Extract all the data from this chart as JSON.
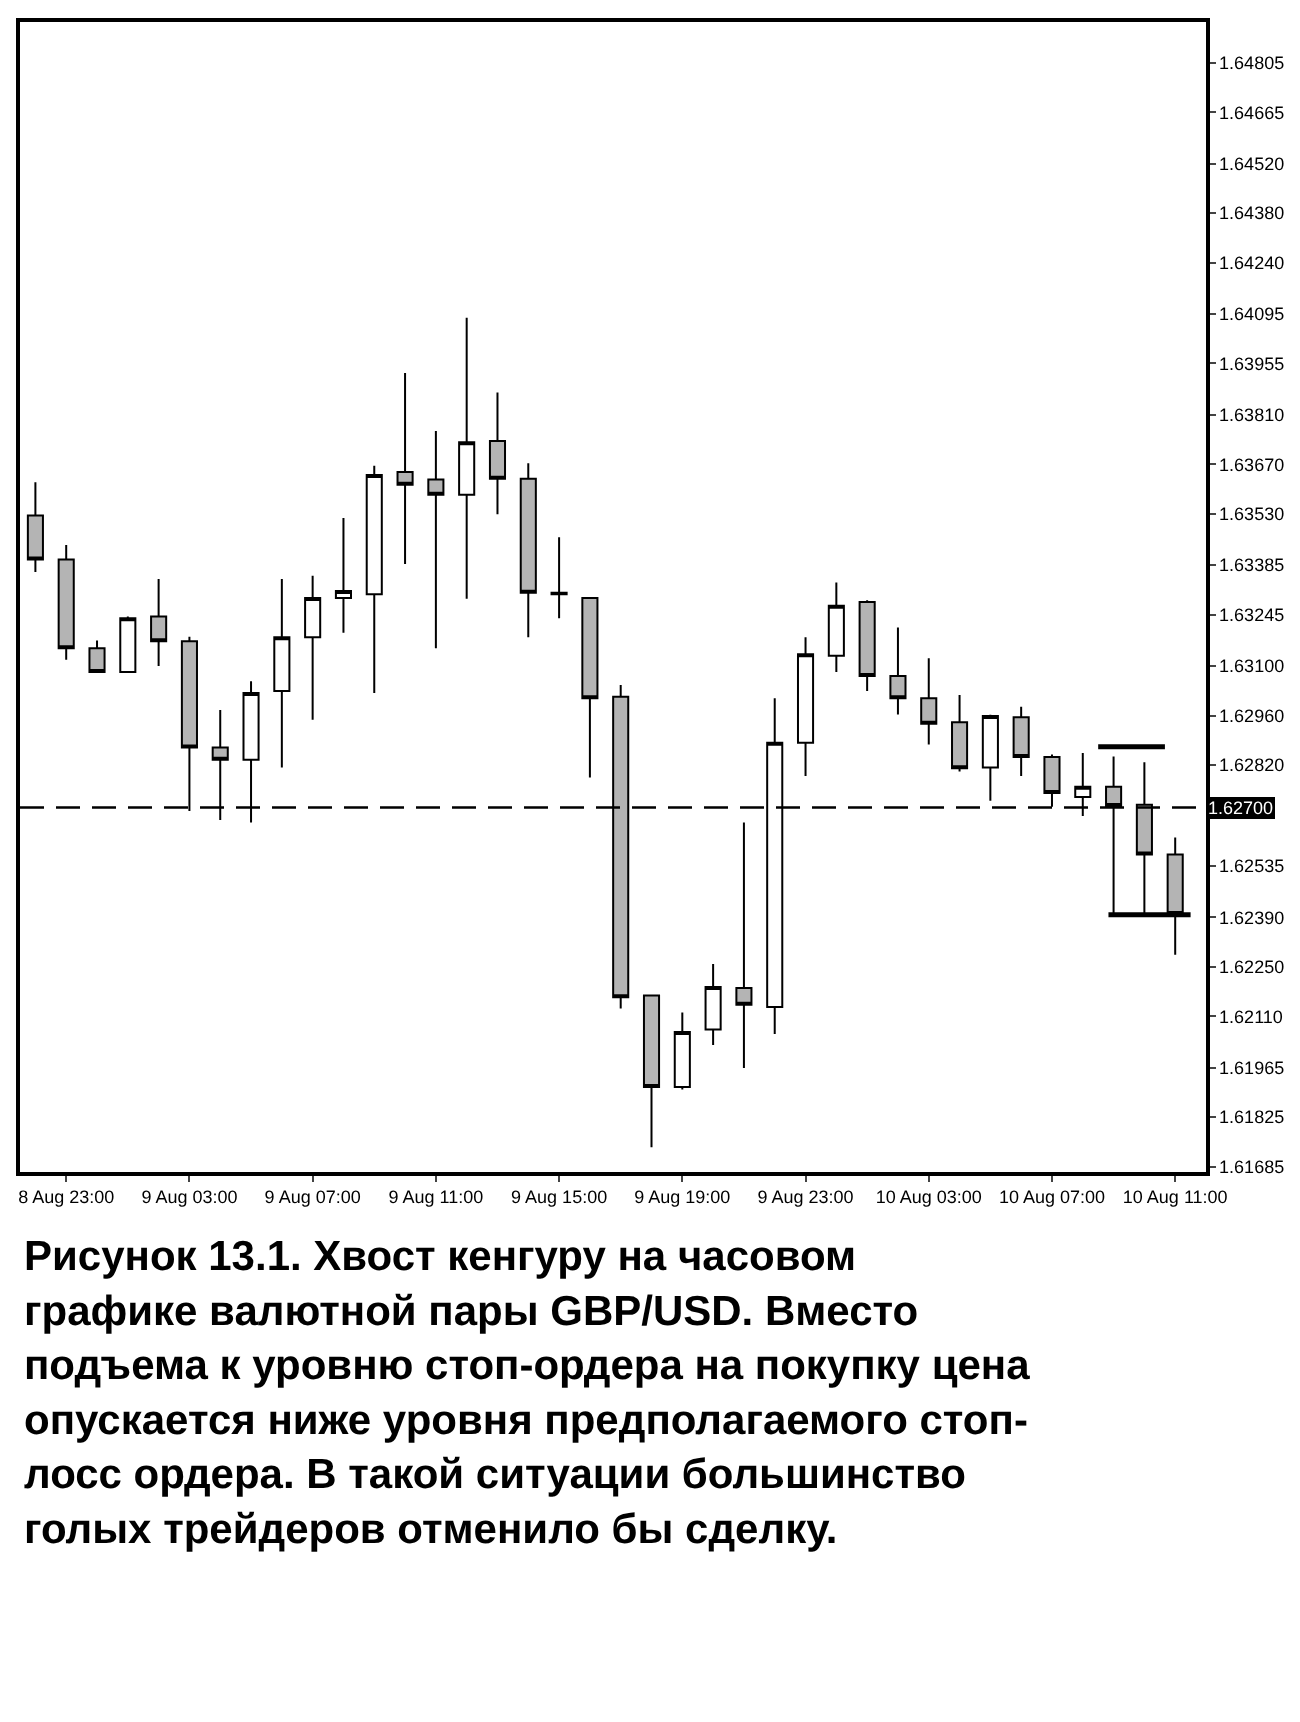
{
  "chart_data": {
    "type": "candlestick",
    "x": [
      "--08-08T22:00",
      "--08-08T23:00",
      "--08-09T00:00",
      "--08-09T01:00",
      "--08-09T02:00",
      "--08-09T03:00",
      "--08-09T04:00",
      "--08-09T05:00",
      "--08-09T06:00",
      "--08-09T07:00",
      "--08-09T08:00",
      "--08-09T09:00",
      "--08-09T10:00",
      "--08-09T11:00",
      "--08-09T12:00",
      "--08-09T13:00",
      "--08-09T14:00",
      "--08-09T15:00",
      "--08-09T16:00",
      "--08-09T17:00",
      "--08-09T18:00",
      "--08-09T19:00",
      "--08-09T20:00",
      "--08-09T21:00",
      "--08-09T22:00",
      "--08-09T23:00",
      "--08-10T00:00",
      "--08-10T01:00",
      "--08-10T02:00",
      "--08-10T03:00",
      "--08-10T04:00",
      "--08-10T05:00",
      "--08-10T06:00",
      "--08-10T07:00",
      "--08-10T08:00",
      "--08-10T09:00",
      "--08-10T10:00",
      "--08-10T11:00"
    ],
    "ohlc": [
      [
        1.63525,
        1.63619,
        1.63366,
        1.63401
      ],
      [
        1.63401,
        1.63442,
        1.63118,
        1.6315
      ],
      [
        1.6315,
        1.63172,
        1.6308,
        1.63083
      ],
      [
        1.63083,
        1.6324,
        1.6308,
        1.63235
      ],
      [
        1.6324,
        1.63346,
        1.631,
        1.6317
      ],
      [
        1.6317,
        1.63183,
        1.6269,
        1.6287
      ],
      [
        1.6287,
        1.62976,
        1.62665,
        1.62835
      ],
      [
        1.62835,
        1.63057,
        1.62658,
        1.63024
      ],
      [
        1.63029,
        1.63346,
        1.62813,
        1.63181
      ],
      [
        1.63181,
        1.63355,
        1.62948,
        1.63292
      ],
      [
        1.63292,
        1.63518,
        1.63194,
        1.63312
      ],
      [
        1.63303,
        1.63666,
        1.63024,
        1.6364
      ],
      [
        1.63648,
        1.63928,
        1.63388,
        1.63612
      ],
      [
        1.63627,
        1.63764,
        1.6315,
        1.63584
      ],
      [
        1.63584,
        1.64084,
        1.6329,
        1.63732
      ],
      [
        1.63736,
        1.63873,
        1.63529,
        1.63629
      ],
      [
        1.63629,
        1.63673,
        1.63181,
        1.63307
      ],
      [
        1.63307,
        1.63464,
        1.63235,
        1.63303
      ],
      [
        1.63292,
        1.63295,
        1.62785,
        1.63009
      ],
      [
        1.63013,
        1.63046,
        1.62132,
        1.62164
      ],
      [
        1.62169,
        1.62169,
        1.6174,
        1.6191
      ],
      [
        1.6191,
        1.62121,
        1.61903,
        1.62066
      ],
      [
        1.62073,
        1.62258,
        1.62029,
        1.62193
      ],
      [
        1.6219,
        1.62658,
        1.61964,
        1.62143
      ],
      [
        1.62136,
        1.63009,
        1.6206,
        1.62883
      ],
      [
        1.62883,
        1.63181,
        1.62789,
        1.63133
      ],
      [
        1.63129,
        1.63336,
        1.63083,
        1.6327
      ],
      [
        1.63281,
        1.63286,
        1.63029,
        1.63072
      ],
      [
        1.63072,
        1.63209,
        1.62963,
        1.63009
      ],
      [
        1.63009,
        1.63122,
        1.62878,
        1.62937
      ],
      [
        1.62941,
        1.63018,
        1.62802,
        1.62811
      ],
      [
        1.62813,
        1.62962,
        1.62719,
        1.62959
      ],
      [
        1.62955,
        1.62985,
        1.62789,
        1.62843
      ],
      [
        1.62843,
        1.6285,
        1.62702,
        1.62741
      ],
      [
        1.6273,
        1.62854,
        1.62676,
        1.62759
      ],
      [
        1.62759,
        1.62844,
        1.62397,
        1.62704
      ],
      [
        1.62708,
        1.62828,
        1.62397,
        1.62567
      ],
      [
        1.62567,
        1.62615,
        1.62284,
        1.62399
      ]
    ],
    "colors": [
      "#b4b4b4",
      "#b4b4b4",
      "#b4b4b4",
      "#ffffff",
      "#b4b4b4",
      "#b4b4b4",
      "#b4b4b4",
      "#ffffff",
      "#ffffff",
      "#ffffff",
      "#ffffff",
      "#ffffff",
      "#b4b4b4",
      "#b4b4b4",
      "#ffffff",
      "#b4b4b4",
      "#b4b4b4",
      "#000000",
      "#b4b4b4",
      "#b4b4b4",
      "#b4b4b4",
      "#ffffff",
      "#ffffff",
      "#b4b4b4",
      "#ffffff",
      "#ffffff",
      "#ffffff",
      "#b4b4b4",
      "#b4b4b4",
      "#b4b4b4",
      "#b4b4b4",
      "#ffffff",
      "#b4b4b4",
      "#b4b4b4",
      "#ffffff",
      "#b4b4b4",
      "#b4b4b4",
      "#b4b4b4"
    ],
    "series": [
      {
        "type": "line",
        "x": [
          "--08-10T08:30",
          "--08-10T10:40"
        ],
        "values": [
          1.62872,
          1.62872
        ],
        "color": "#000000"
      },
      {
        "type": "line",
        "x": [
          "--08-10T08:50",
          "--08-10T11:30"
        ],
        "values": [
          1.62397,
          1.62397
        ],
        "color": "#000000"
      }
    ],
    "ref_lines": [
      {
        "axis": "y",
        "value": 1.627,
        "label": "1.62700",
        "color": "#000000",
        "line_style": "dashed"
      }
    ],
    "xlim": [
      "--08-08T21:30",
      "--08-10T12:00"
    ],
    "xticks": [
      {
        "value": "--08-08T23:00",
        "label": "8 Aug 23:00"
      },
      {
        "value": "--08-09T03:00",
        "label": "9 Aug 03:00"
      },
      {
        "value": "--08-09T07:00",
        "label": "9 Aug 07:00"
      },
      {
        "value": "--08-09T11:00",
        "label": "9 Aug 11:00"
      },
      {
        "value": "--08-09T15:00",
        "label": "9 Aug 15:00"
      },
      {
        "value": "--08-09T19:00",
        "label": "9 Aug 19:00"
      },
      {
        "value": "--08-09T23:00",
        "label": "9 Aug 23:00"
      },
      {
        "value": "--08-10T03:00",
        "label": "10 Aug 03:00"
      },
      {
        "value": "--08-10T07:00",
        "label": "10 Aug 07:00"
      },
      {
        "value": "--08-10T11:00",
        "label": "10 Aug 11:00"
      }
    ],
    "ylim": [
      1.6167,
      1.6492
    ],
    "yticks": [
      1.64805,
      1.64665,
      {
        "value": 1.6452,
        "label": "1.64520"
      },
      {
        "value": 1.6438,
        "label": "1.64380"
      },
      {
        "value": 1.6424,
        "label": "1.64240"
      },
      1.64095,
      1.63955,
      {
        "value": 1.6381,
        "label": "1.63810"
      },
      {
        "value": 1.6367,
        "label": "1.63670"
      },
      {
        "value": 1.6353,
        "label": "1.63530"
      },
      1.63385,
      1.63245,
      {
        "value": 1.631,
        "label": "1.63100"
      },
      {
        "value": 1.6296,
        "label": "1.62960"
      },
      {
        "value": 1.6282,
        "label": "1.62820"
      },
      1.62535,
      {
        "value": 1.6239,
        "label": "1.62390"
      },
      {
        "value": 1.6225,
        "label": "1.62250"
      },
      {
        "value": 1.6211,
        "label": "1.62110"
      },
      1.61965,
      1.61825,
      1.61685
    ],
    "annotations": [
      "Рисунок 13.1. Хвост кенгуру на часовом графике валютной пары GBP/USD. Вместо подъема к уровню стоп-ордера на покупку цена опускается ниже уровня предполагаемого стоп-лосс ордера. В такой ситуации большинство голых трейдеров отменило бы сделку."
    ]
  }
}
